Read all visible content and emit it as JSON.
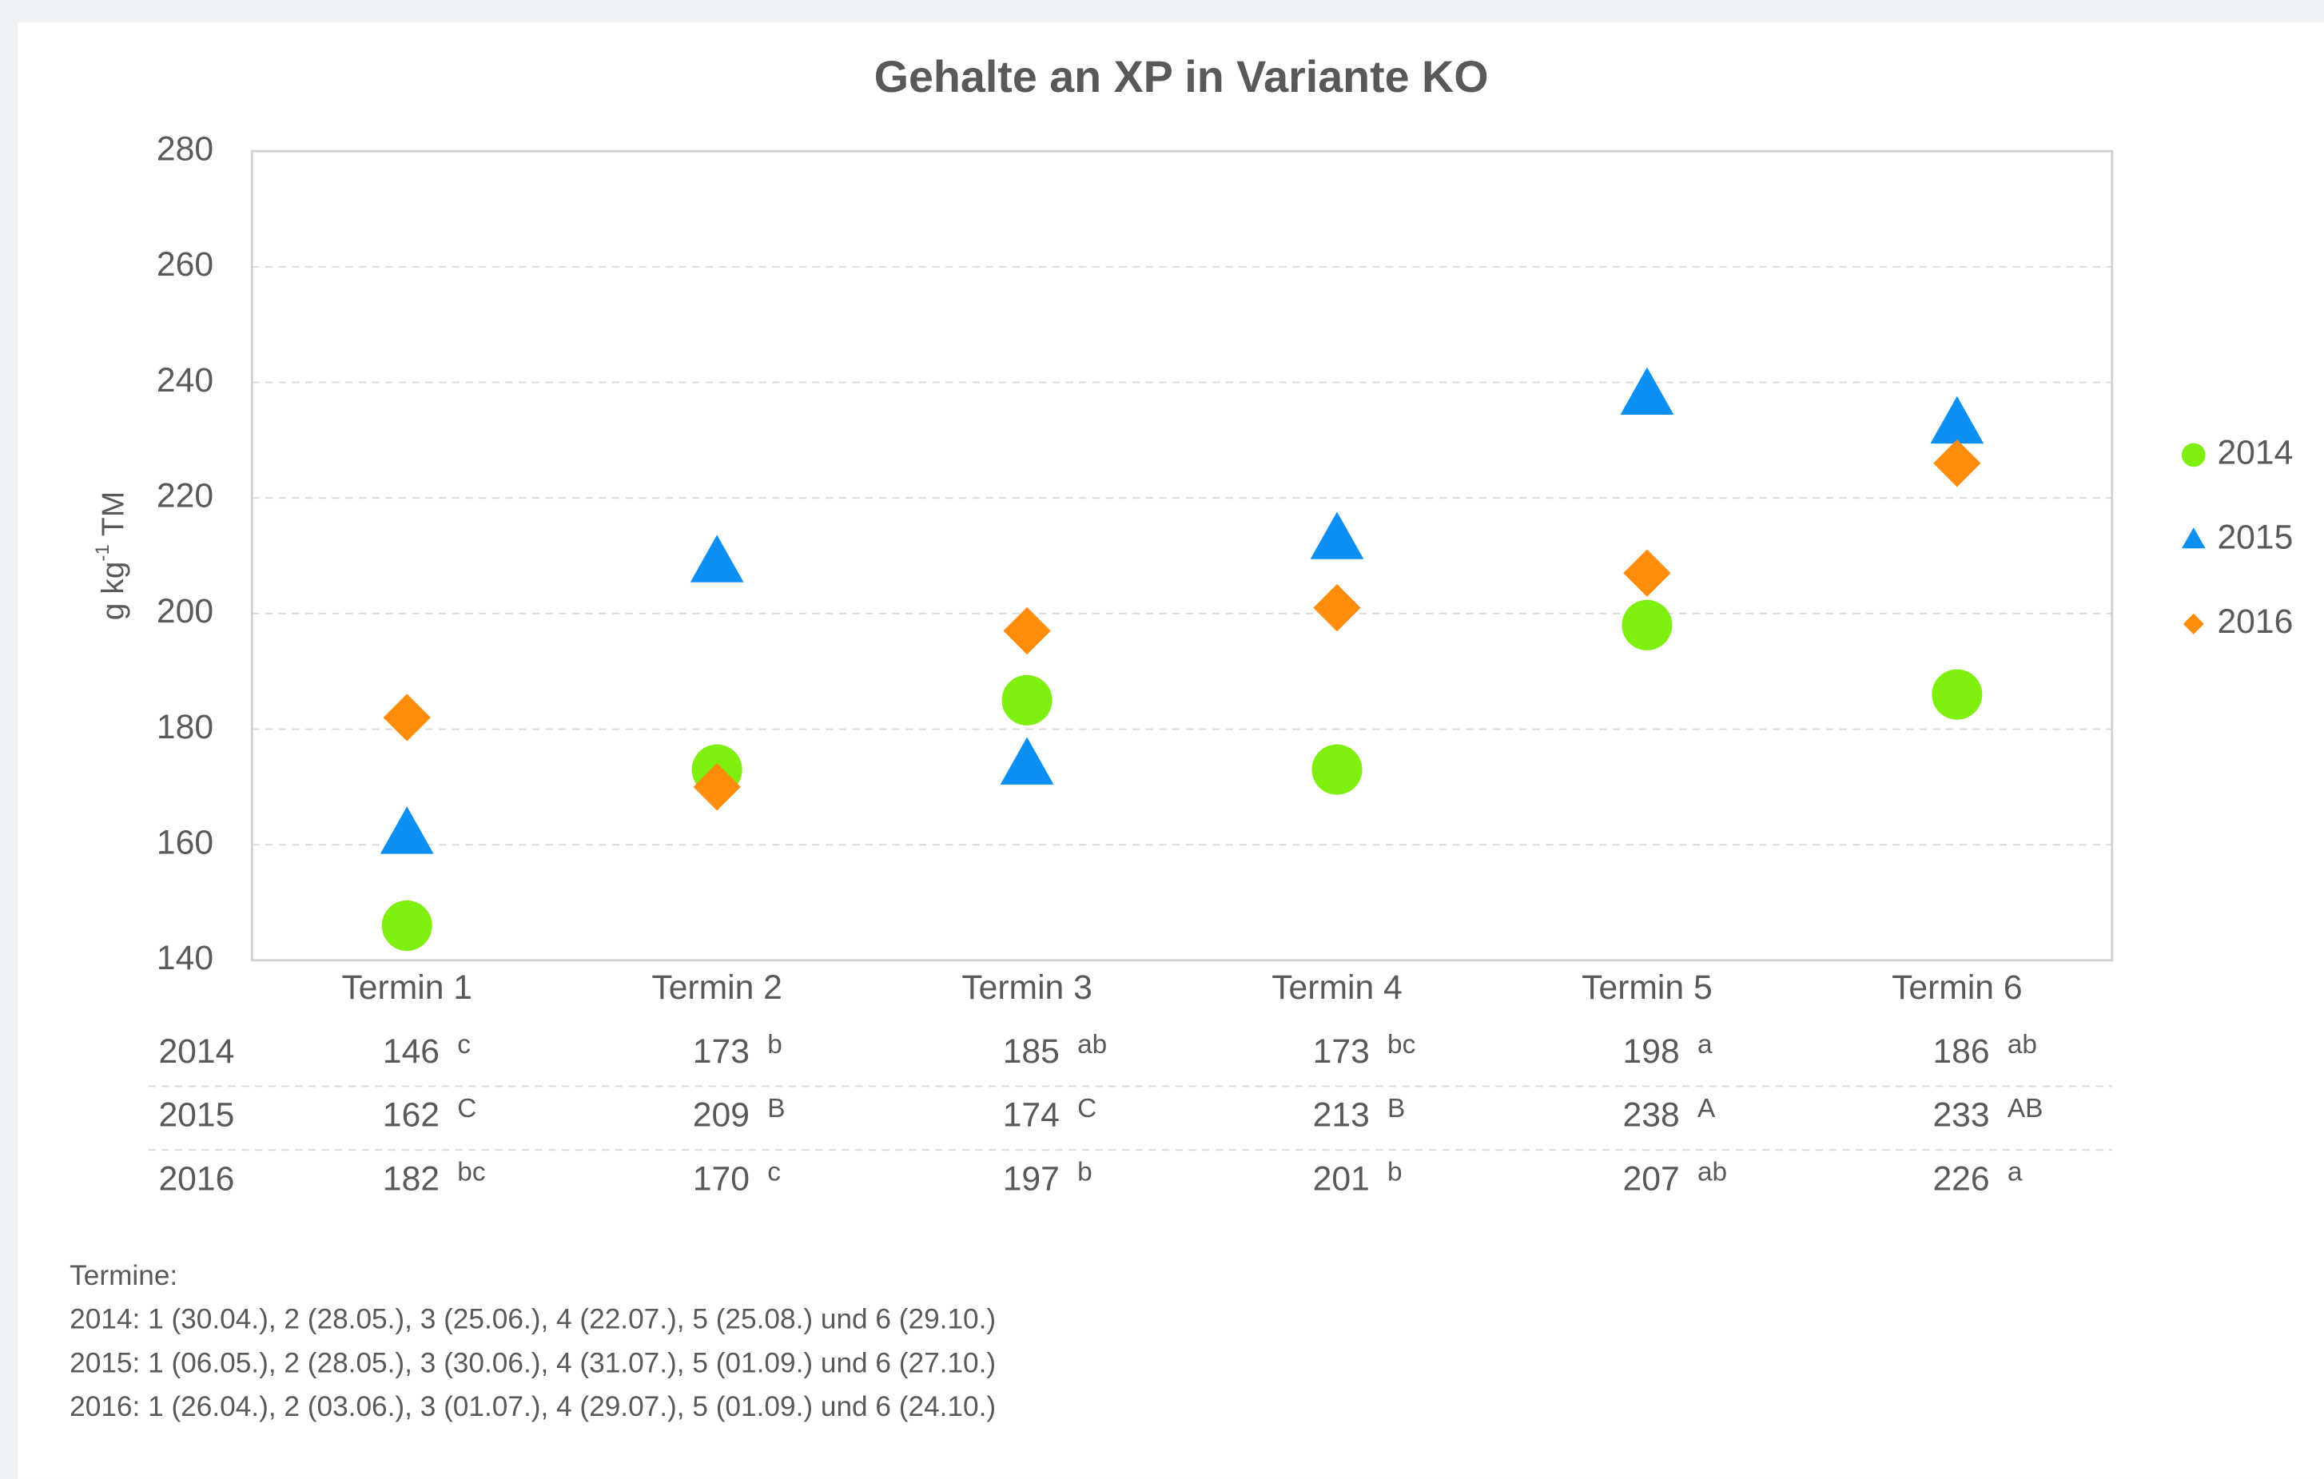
{
  "chart_data": {
    "type": "scatter",
    "title": "Gehalte an XP in Variante KO",
    "ylabel": [
      "g kg",
      "-1",
      " TM"
    ],
    "categories": [
      "Termin 1",
      "Termin 2",
      "Termin 3",
      "Termin 4",
      "Termin 5",
      "Termin 6"
    ],
    "series": [
      {
        "name": "2014",
        "color": "#7fef0f",
        "marker": "circle",
        "values": [
          146,
          173,
          185,
          173,
          198,
          186
        ],
        "letters": [
          "c",
          "b",
          "ab",
          "bc",
          "a",
          "ab"
        ]
      },
      {
        "name": "2015",
        "color": "#0b8ff5",
        "marker": "triangle",
        "values": [
          162,
          209,
          174,
          213,
          238,
          233
        ],
        "letters": [
          "C",
          "B",
          "C",
          "B",
          "A",
          "AB"
        ]
      },
      {
        "name": "2016",
        "color": "#ff8c0a",
        "marker": "diamond",
        "values": [
          182,
          170,
          197,
          201,
          207,
          226
        ],
        "letters": [
          "bc",
          "c",
          "b",
          "b",
          "ab",
          "a"
        ]
      }
    ],
    "ylim": [
      140,
      280
    ],
    "yticks": [
      140,
      160,
      180,
      200,
      220,
      240,
      260,
      280
    ],
    "grid": true,
    "legend": "right",
    "notes": [
      "Termine:",
      "2014: 1 (30.04.), 2 (28.05.), 3 (25.06.), 4 (22.07.), 5 (25.08.) und 6 (29.10.)",
      "2015: 1 (06.05.), 2 (28.05.), 3 (30.06.), 4 (31.07.), 5 (01.09.) und 6 (27.10.)",
      "2016: 1 (26.04.), 2 (03.06.), 3 (01.07.), 4 (29.07.), 5 (01.09.) und 6 (24.10.)"
    ]
  }
}
